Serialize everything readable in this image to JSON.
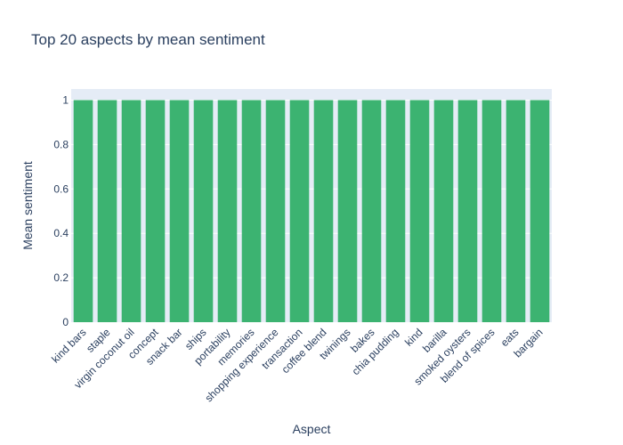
{
  "chart_data": {
    "type": "bar",
    "title": "Top 20 aspects by mean sentiment",
    "xlabel": "Aspect",
    "ylabel": "Mean sentiment",
    "categories": [
      "kind bars",
      "staple",
      "virgin coconut oil",
      "concept",
      "snack bar",
      "ships",
      "portability",
      "memories",
      "shopping experience",
      "transaction",
      "coffee blend",
      "twinings",
      "bakes",
      "chia pudding",
      "kind",
      "barilla",
      "smoked oysters",
      "blend of spices",
      "eats",
      "bargain"
    ],
    "values": [
      1,
      1,
      1,
      1,
      1,
      1,
      1,
      1,
      1,
      1,
      1,
      1,
      1,
      1,
      1,
      1,
      1,
      1,
      1,
      1
    ],
    "ylim": [
      0,
      1.05
    ],
    "yticks": [
      0,
      0.2,
      0.4,
      0.6,
      0.8,
      1
    ],
    "ytick_labels": [
      "0",
      "0.2",
      "0.4",
      "0.6",
      "0.8",
      "1"
    ],
    "grid": true,
    "colors": {
      "bar": "#3cb371",
      "plot_bg": "#e5ecf6",
      "grid": "#ffffff",
      "text": "#2a3f5f"
    }
  }
}
